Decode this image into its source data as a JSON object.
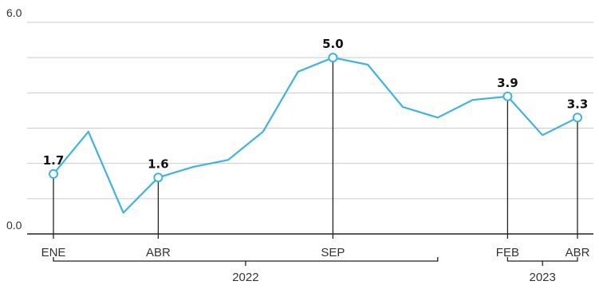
{
  "chart_data": {
    "type": "line",
    "ylim": [
      0,
      6
    ],
    "ytick_labels": [
      "6.0",
      "0.0"
    ],
    "grid": true,
    "series": [
      {
        "values": [
          1.7,
          2.9,
          0.6,
          1.6,
          1.9,
          2.1,
          2.9,
          4.6,
          5.0,
          4.8,
          3.6,
          3.3,
          3.8,
          3.9,
          2.8,
          3.3
        ]
      }
    ],
    "annotated_points": [
      {
        "index": 0,
        "label": "1.7",
        "category": "ENE"
      },
      {
        "index": 3,
        "label": "1.6",
        "category": "ABR"
      },
      {
        "index": 8,
        "label": "5.0",
        "category": "SEP"
      },
      {
        "index": 13,
        "label": "3.9",
        "category": "FEB"
      },
      {
        "index": 15,
        "label": "3.3",
        "category": "ABR"
      }
    ],
    "year_groups": [
      {
        "label": "2022",
        "from_index": 0,
        "to_index": 11
      },
      {
        "label": "2023",
        "from_index": 13,
        "to_index": 15
      }
    ]
  },
  "colors": {
    "line": "#3bb4e6",
    "grid": "#cccccc",
    "axis": "#222222",
    "stem": "#222222",
    "text": "#333333"
  }
}
